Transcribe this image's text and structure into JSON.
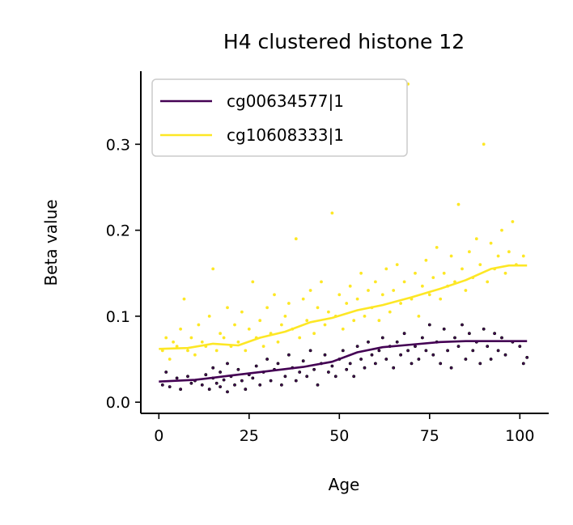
{
  "chart_data": {
    "type": "scatter",
    "title": "H4 clustered histone 12",
    "xlabel": "Age",
    "ylabel": "Beta value",
    "xlim": [
      -5,
      108
    ],
    "ylim": [
      -0.013,
      0.385
    ],
    "xticks": [
      0,
      25,
      50,
      75,
      100
    ],
    "yticks": [
      0.0,
      0.1,
      0.2,
      0.3
    ],
    "xtick_labels": [
      "0",
      "25",
      "50",
      "75",
      "100"
    ],
    "ytick_labels": [
      "0.0",
      "0.1",
      "0.2",
      "0.3"
    ],
    "grid": false,
    "legend_position": "top-left",
    "series": [
      {
        "name": "cg00634577|1",
        "color": "#440154",
        "point_edge_color": "#000000",
        "trend": [
          [
            0,
            0.024
          ],
          [
            10,
            0.026
          ],
          [
            20,
            0.031
          ],
          [
            30,
            0.036
          ],
          [
            40,
            0.041
          ],
          [
            48,
            0.047
          ],
          [
            55,
            0.058
          ],
          [
            62,
            0.064
          ],
          [
            70,
            0.067
          ],
          [
            78,
            0.07
          ],
          [
            85,
            0.071
          ],
          [
            92,
            0.071
          ],
          [
            102,
            0.071
          ]
        ],
        "points": [
          [
            1,
            0.02
          ],
          [
            2,
            0.035
          ],
          [
            3,
            0.018
          ],
          [
            5,
            0.028
          ],
          [
            6,
            0.015
          ],
          [
            8,
            0.03
          ],
          [
            9,
            0.022
          ],
          [
            10,
            0.025
          ],
          [
            12,
            0.02
          ],
          [
            13,
            0.032
          ],
          [
            14,
            0.015
          ],
          [
            15,
            0.028
          ],
          [
            15,
            0.04
          ],
          [
            16,
            0.022
          ],
          [
            17,
            0.018
          ],
          [
            17,
            0.035
          ],
          [
            18,
            0.026
          ],
          [
            19,
            0.012
          ],
          [
            19,
            0.045
          ],
          [
            20,
            0.03
          ],
          [
            21,
            0.02
          ],
          [
            22,
            0.038
          ],
          [
            23,
            0.025
          ],
          [
            24,
            0.015
          ],
          [
            25,
            0.032
          ],
          [
            26,
            0.028
          ],
          [
            27,
            0.042
          ],
          [
            28,
            0.02
          ],
          [
            29,
            0.035
          ],
          [
            30,
            0.05
          ],
          [
            31,
            0.025
          ],
          [
            32,
            0.038
          ],
          [
            33,
            0.045
          ],
          [
            34,
            0.02
          ],
          [
            35,
            0.03
          ],
          [
            36,
            0.055
          ],
          [
            37,
            0.04
          ],
          [
            38,
            0.025
          ],
          [
            39,
            0.035
          ],
          [
            40,
            0.048
          ],
          [
            41,
            0.03
          ],
          [
            42,
            0.06
          ],
          [
            43,
            0.038
          ],
          [
            44,
            0.02
          ],
          [
            45,
            0.045
          ],
          [
            46,
            0.055
          ],
          [
            47,
            0.035
          ],
          [
            48,
            0.042
          ],
          [
            49,
            0.03
          ],
          [
            50,
            0.05
          ],
          [
            51,
            0.06
          ],
          [
            52,
            0.038
          ],
          [
            53,
            0.045
          ],
          [
            54,
            0.03
          ],
          [
            55,
            0.065
          ],
          [
            56,
            0.05
          ],
          [
            57,
            0.04
          ],
          [
            58,
            0.07
          ],
          [
            59,
            0.055
          ],
          [
            60,
            0.045
          ],
          [
            61,
            0.06
          ],
          [
            62,
            0.075
          ],
          [
            63,
            0.05
          ],
          [
            64,
            0.065
          ],
          [
            65,
            0.04
          ],
          [
            66,
            0.07
          ],
          [
            67,
            0.055
          ],
          [
            68,
            0.08
          ],
          [
            69,
            0.06
          ],
          [
            70,
            0.045
          ],
          [
            71,
            0.065
          ],
          [
            72,
            0.05
          ],
          [
            73,
            0.075
          ],
          [
            74,
            0.06
          ],
          [
            75,
            0.09
          ],
          [
            76,
            0.055
          ],
          [
            77,
            0.07
          ],
          [
            78,
            0.045
          ],
          [
            79,
            0.085
          ],
          [
            80,
            0.06
          ],
          [
            81,
            0.04
          ],
          [
            82,
            0.075
          ],
          [
            83,
            0.065
          ],
          [
            84,
            0.09
          ],
          [
            85,
            0.05
          ],
          [
            86,
            0.08
          ],
          [
            87,
            0.06
          ],
          [
            88,
            0.07
          ],
          [
            89,
            0.045
          ],
          [
            90,
            0.085
          ],
          [
            91,
            0.065
          ],
          [
            92,
            0.05
          ],
          [
            93,
            0.08
          ],
          [
            94,
            0.06
          ],
          [
            95,
            0.075
          ],
          [
            96,
            0.055
          ],
          [
            98,
            0.07
          ],
          [
            100,
            0.065
          ],
          [
            101,
            0.045
          ],
          [
            102,
            0.052
          ]
        ]
      },
      {
        "name": "cg10608333|1",
        "color": "#fde725",
        "point_edge_color": "#fde725",
        "trend": [
          [
            0,
            0.062
          ],
          [
            8,
            0.063
          ],
          [
            15,
            0.068
          ],
          [
            22,
            0.066
          ],
          [
            28,
            0.075
          ],
          [
            35,
            0.082
          ],
          [
            42,
            0.093
          ],
          [
            48,
            0.098
          ],
          [
            55,
            0.107
          ],
          [
            62,
            0.113
          ],
          [
            70,
            0.122
          ],
          [
            78,
            0.132
          ],
          [
            85,
            0.142
          ],
          [
            92,
            0.155
          ],
          [
            97,
            0.159
          ],
          [
            102,
            0.159
          ]
        ],
        "points": [
          [
            1,
            0.06
          ],
          [
            2,
            0.075
          ],
          [
            3,
            0.05
          ],
          [
            4,
            0.07
          ],
          [
            5,
            0.065
          ],
          [
            6,
            0.085
          ],
          [
            7,
            0.12
          ],
          [
            8,
            0.06
          ],
          [
            9,
            0.075
          ],
          [
            10,
            0.055
          ],
          [
            11,
            0.09
          ],
          [
            12,
            0.07
          ],
          [
            13,
            0.065
          ],
          [
            14,
            0.1
          ],
          [
            15,
            0.155
          ],
          [
            16,
            0.06
          ],
          [
            17,
            0.08
          ],
          [
            18,
            0.075
          ],
          [
            19,
            0.11
          ],
          [
            20,
            0.065
          ],
          [
            21,
            0.09
          ],
          [
            22,
            0.07
          ],
          [
            23,
            0.105
          ],
          [
            24,
            0.06
          ],
          [
            25,
            0.085
          ],
          [
            26,
            0.14
          ],
          [
            27,
            0.075
          ],
          [
            28,
            0.095
          ],
          [
            29,
            0.065
          ],
          [
            30,
            0.11
          ],
          [
            31,
            0.08
          ],
          [
            32,
            0.125
          ],
          [
            33,
            0.07
          ],
          [
            34,
            0.09
          ],
          [
            35,
            0.1
          ],
          [
            36,
            0.115
          ],
          [
            37,
            0.085
          ],
          [
            38,
            0.19
          ],
          [
            39,
            0.075
          ],
          [
            40,
            0.12
          ],
          [
            41,
            0.095
          ],
          [
            42,
            0.13
          ],
          [
            43,
            0.08
          ],
          [
            44,
            0.11
          ],
          [
            45,
            0.14
          ],
          [
            46,
            0.09
          ],
          [
            47,
            0.105
          ],
          [
            48,
            0.22
          ],
          [
            49,
            0.1
          ],
          [
            50,
            0.125
          ],
          [
            51,
            0.085
          ],
          [
            52,
            0.115
          ],
          [
            53,
            0.135
          ],
          [
            54,
            0.095
          ],
          [
            55,
            0.12
          ],
          [
            56,
            0.15
          ],
          [
            57,
            0.1
          ],
          [
            58,
            0.13
          ],
          [
            59,
            0.11
          ],
          [
            60,
            0.14
          ],
          [
            61,
            0.095
          ],
          [
            62,
            0.125
          ],
          [
            63,
            0.155
          ],
          [
            64,
            0.105
          ],
          [
            65,
            0.13
          ],
          [
            66,
            0.16
          ],
          [
            67,
            0.115
          ],
          [
            68,
            0.14
          ],
          [
            69,
            0.37
          ],
          [
            70,
            0.12
          ],
          [
            71,
            0.15
          ],
          [
            72,
            0.1
          ],
          [
            73,
            0.135
          ],
          [
            74,
            0.165
          ],
          [
            75,
            0.125
          ],
          [
            76,
            0.145
          ],
          [
            77,
            0.18
          ],
          [
            78,
            0.12
          ],
          [
            79,
            0.15
          ],
          [
            80,
            0.135
          ],
          [
            81,
            0.17
          ],
          [
            82,
            0.14
          ],
          [
            83,
            0.23
          ],
          [
            84,
            0.155
          ],
          [
            85,
            0.13
          ],
          [
            86,
            0.175
          ],
          [
            87,
            0.145
          ],
          [
            88,
            0.19
          ],
          [
            89,
            0.16
          ],
          [
            90,
            0.3
          ],
          [
            91,
            0.14
          ],
          [
            92,
            0.185
          ],
          [
            93,
            0.155
          ],
          [
            94,
            0.17
          ],
          [
            95,
            0.2
          ],
          [
            96,
            0.15
          ],
          [
            97,
            0.175
          ],
          [
            98,
            0.21
          ],
          [
            99,
            0.16
          ],
          [
            101,
            0.17
          ]
        ]
      }
    ]
  }
}
